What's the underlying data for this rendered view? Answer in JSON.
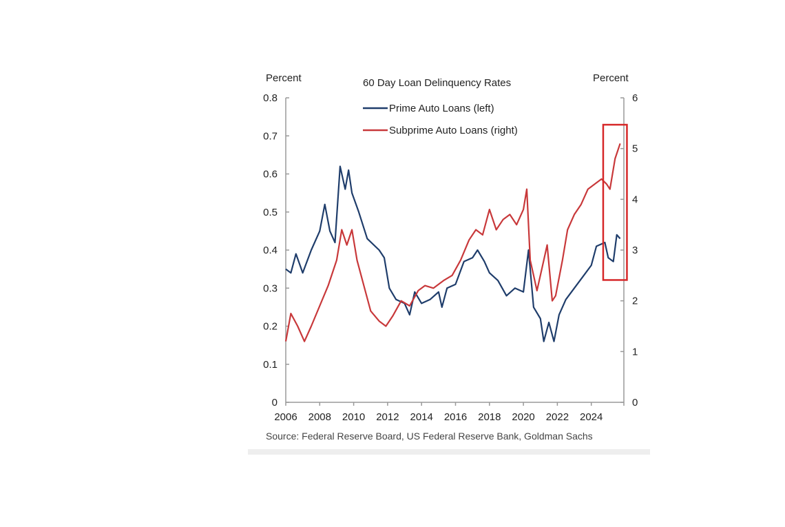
{
  "chart_data": {
    "type": "line",
    "title": "60 Day Loan Delinquency Rates",
    "ylabel_left": "Percent",
    "ylabel_right": "Percent",
    "source": "Source: Federal Reserve Board, US Federal Reserve Bank, Goldman Sachs",
    "xlim": [
      2006,
      2026
    ],
    "ylim_left": [
      0,
      0.8
    ],
    "ylim_right": [
      0,
      6
    ],
    "x_ticks": [
      "2006",
      "2008",
      "2010",
      "2012",
      "2014",
      "2016",
      "2018",
      "2020",
      "2022",
      "2024"
    ],
    "y_ticks_left": [
      "0",
      "0.1",
      "0.2",
      "0.3",
      "0.4",
      "0.5",
      "0.6",
      "0.7",
      "0.8"
    ],
    "y_ticks_right": [
      "0",
      "1",
      "2",
      "3",
      "4",
      "5",
      "6"
    ],
    "grid": false,
    "legend_position": "top-center",
    "highlight": {
      "x_range": [
        2024.7,
        2026.1
      ],
      "y_range_right": [
        2.41,
        5.47
      ],
      "color": "#d62728"
    },
    "series": [
      {
        "name": "Prime Auto Loans (left)",
        "axis": "left",
        "color": "#1f3d6b",
        "x": [
          2006.0,
          2006.3,
          2006.6,
          2007.0,
          2007.5,
          2008.0,
          2008.3,
          2008.6,
          2008.9,
          2009.2,
          2009.5,
          2009.7,
          2009.9,
          2010.3,
          2010.8,
          2011.5,
          2011.8,
          2012.1,
          2012.5,
          2013.0,
          2013.3,
          2013.6,
          2014.0,
          2014.5,
          2015.0,
          2015.2,
          2015.5,
          2016.0,
          2016.5,
          2017.0,
          2017.3,
          2017.7,
          2018.0,
          2018.5,
          2019.0,
          2019.5,
          2020.0,
          2020.3,
          2020.6,
          2021.0,
          2021.2,
          2021.5,
          2021.8,
          2022.1,
          2022.5,
          2023.0,
          2023.5,
          2024.0,
          2024.3,
          2024.8,
          2025.0,
          2025.3,
          2025.5,
          2025.7
        ],
        "y": [
          0.35,
          0.34,
          0.39,
          0.34,
          0.4,
          0.45,
          0.52,
          0.45,
          0.42,
          0.62,
          0.56,
          0.61,
          0.55,
          0.5,
          0.43,
          0.4,
          0.38,
          0.3,
          0.27,
          0.26,
          0.23,
          0.29,
          0.26,
          0.27,
          0.29,
          0.25,
          0.3,
          0.31,
          0.37,
          0.38,
          0.4,
          0.37,
          0.34,
          0.32,
          0.28,
          0.3,
          0.29,
          0.4,
          0.25,
          0.22,
          0.16,
          0.21,
          0.16,
          0.23,
          0.27,
          0.3,
          0.33,
          0.36,
          0.41,
          0.42,
          0.38,
          0.37,
          0.44,
          0.43
        ]
      },
      {
        "name": "Subprime Auto Loans (right)",
        "axis": "right",
        "color": "#c8383a",
        "x": [
          2006.0,
          2006.3,
          2006.7,
          2007.1,
          2007.5,
          2008.0,
          2008.5,
          2009.0,
          2009.3,
          2009.6,
          2009.9,
          2010.2,
          2010.6,
          2011.0,
          2011.5,
          2011.9,
          2012.3,
          2012.8,
          2013.3,
          2013.8,
          2014.2,
          2014.7,
          2015.3,
          2015.8,
          2016.3,
          2016.8,
          2017.2,
          2017.6,
          2018.0,
          2018.4,
          2018.8,
          2019.2,
          2019.6,
          2020.0,
          2020.2,
          2020.4,
          2020.8,
          2021.2,
          2021.4,
          2021.7,
          2021.9,
          2022.3,
          2022.6,
          2023.0,
          2023.4,
          2023.8,
          2024.2,
          2024.6,
          2024.9,
          2025.1,
          2025.4,
          2025.7
        ],
        "y": [
          1.2,
          1.75,
          1.5,
          1.2,
          1.5,
          1.9,
          2.3,
          2.8,
          3.4,
          3.1,
          3.4,
          2.8,
          2.3,
          1.8,
          1.6,
          1.5,
          1.7,
          2.0,
          1.9,
          2.2,
          2.3,
          2.25,
          2.4,
          2.5,
          2.8,
          3.2,
          3.4,
          3.3,
          3.8,
          3.4,
          3.6,
          3.7,
          3.5,
          3.8,
          4.2,
          2.8,
          2.2,
          2.8,
          3.1,
          2.0,
          2.1,
          2.8,
          3.4,
          3.7,
          3.9,
          4.2,
          4.3,
          4.4,
          4.3,
          4.2,
          4.8,
          5.1
        ]
      }
    ]
  }
}
